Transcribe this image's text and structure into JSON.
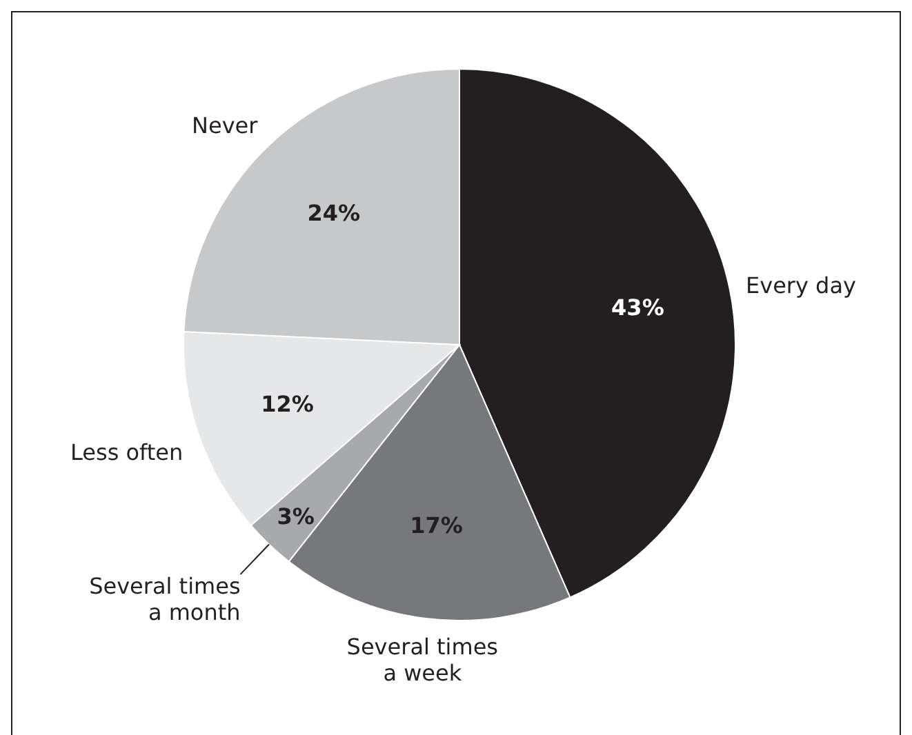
{
  "chart_data": {
    "type": "pie",
    "categories": [
      "Every day",
      "Several times a week",
      "Several times a month",
      "Less often",
      "Never"
    ],
    "values": [
      43,
      17,
      3,
      12,
      24
    ],
    "value_labels": [
      "43%",
      "17%",
      "3%",
      "12%",
      "24%"
    ],
    "colors": [
      "#231f20",
      "#77787b",
      "#a7a9ac",
      "#e6e7e8",
      "#c7c8ca"
    ]
  }
}
